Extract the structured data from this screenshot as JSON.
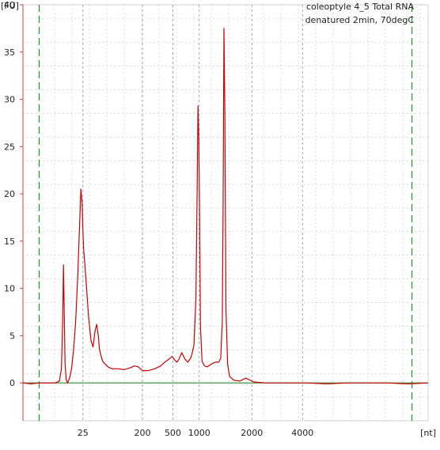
{
  "chart_data": {
    "type": "line",
    "title_lines": [
      "coleoptyle 4_5 Total RNA",
      "denatured 2min, 70degC"
    ],
    "ylabel": "[FU]",
    "xlabel": "[nt]",
    "ylim": [
      -4,
      40
    ],
    "y_ticks": [
      0,
      5,
      10,
      15,
      20,
      25,
      30,
      35,
      40
    ],
    "x_ticks": [
      {
        "label": "25",
        "pos": 14.8
      },
      {
        "label": "200",
        "pos": 29.5
      },
      {
        "label": "500",
        "pos": 37.0
      },
      {
        "label": "1000",
        "pos": 43.5
      },
      {
        "label": "2000",
        "pos": 56.5
      },
      {
        "label": "4000",
        "pos": 69.0
      }
    ],
    "x_range": [
      0,
      100
    ],
    "markers": [
      4.0,
      96.0
    ],
    "grid": true,
    "baseline": 0,
    "colors": {
      "trace": "#cc0000",
      "baseline": "#2e8b2e",
      "marker": "#1f8f1f",
      "grid": "#b8b8b8",
      "axis": "#d04040",
      "vgrid": "#7f8fc8"
    },
    "series": [
      {
        "x": [
          0,
          2,
          4,
          6,
          8,
          9,
          9.5,
          9.8,
          10.0,
          10.2,
          10.4,
          10.7,
          11.0,
          11.5,
          12.0,
          12.5,
          13.0,
          13.5,
          14.0,
          14.3,
          14.6,
          14.8,
          15.0,
          15.3,
          15.7,
          16.2,
          16.8,
          17.3,
          17.8,
          18.2,
          18.6,
          18.9,
          19.2,
          19.5,
          19.8,
          20.3,
          21.0,
          22.0,
          23.5,
          25.0,
          26.5,
          27.5,
          28.5,
          29.0,
          29.5,
          30.0,
          31.0,
          32.5,
          34.0,
          35.0,
          36.0,
          36.8,
          37.3,
          38.0,
          38.5,
          39.2,
          40.0,
          40.7,
          41.5,
          42.2,
          42.7,
          43.0,
          43.2,
          43.4,
          43.6,
          43.8,
          44.2,
          44.8,
          45.5,
          46.5,
          47.5,
          48.3,
          48.8,
          49.2,
          49.4,
          49.6,
          49.8,
          50.1,
          50.5,
          51.0,
          52.0,
          53.5,
          55.0,
          57.0,
          60.0,
          65.0,
          70.0,
          75.0,
          80.0,
          85.0,
          90.0,
          95.0,
          100.0
        ],
        "y": [
          0,
          -0.1,
          0,
          0,
          0,
          0.2,
          1.5,
          6.5,
          12.5,
          7.5,
          2.0,
          0.3,
          0,
          0.5,
          1.5,
          3.5,
          6.5,
          11.0,
          17.0,
          20.5,
          19.0,
          16.0,
          14.0,
          12.5,
          10.0,
          7.0,
          4.5,
          3.8,
          5.5,
          6.2,
          5.0,
          3.5,
          3.0,
          2.5,
          2.2,
          2.0,
          1.7,
          1.5,
          1.5,
          1.4,
          1.6,
          1.8,
          1.7,
          1.5,
          1.3,
          1.3,
          1.3,
          1.5,
          1.8,
          2.2,
          2.5,
          2.8,
          2.5,
          2.2,
          2.5,
          3.2,
          2.5,
          2.2,
          2.7,
          4.0,
          9.0,
          21.0,
          29.3,
          26.0,
          18.0,
          6.0,
          2.3,
          1.8,
          1.7,
          2.0,
          2.2,
          2.2,
          2.6,
          6.5,
          18.0,
          37.5,
          30.0,
          8.0,
          2.0,
          0.7,
          0.3,
          0.2,
          0.5,
          0.1,
          0,
          0,
          0,
          -0.1,
          0,
          0,
          0,
          -0.1,
          0
        ]
      }
    ]
  }
}
